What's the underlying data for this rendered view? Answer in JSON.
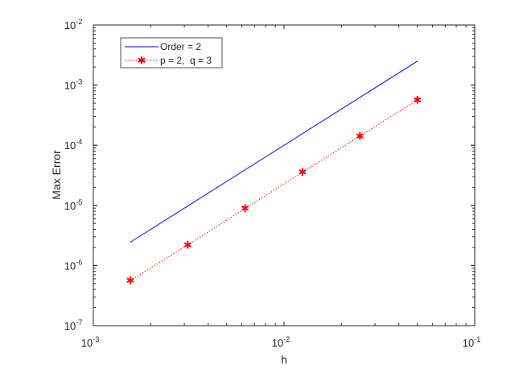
{
  "chart_data": {
    "type": "line",
    "title": "",
    "xlabel": "h",
    "ylabel": "Max Error",
    "xscale": "log",
    "yscale": "log",
    "xlim": [
      0.001,
      0.1
    ],
    "ylim": [
      1e-07,
      0.01
    ],
    "xticks": [
      {
        "base": "10",
        "exp": "-3",
        "value": 0.001
      },
      {
        "base": "10",
        "exp": "-2",
        "value": 0.01
      },
      {
        "base": "10",
        "exp": "-1",
        "value": 0.1
      }
    ],
    "yticks": [
      {
        "base": "10",
        "exp": "-7",
        "value": 1e-07
      },
      {
        "base": "10",
        "exp": "-6",
        "value": 1e-06
      },
      {
        "base": "10",
        "exp": "-5",
        "value": 1e-05
      },
      {
        "base": "10",
        "exp": "-4",
        "value": 0.0001
      },
      {
        "base": "10",
        "exp": "-3",
        "value": 0.001
      },
      {
        "base": "10",
        "exp": "-2",
        "value": 0.01
      }
    ],
    "legend_position": "top-left",
    "series": [
      {
        "name": "Order = 2",
        "color": "#0000ff",
        "style": "solid",
        "marker": "none",
        "x": [
          0.0015625,
          0.05
        ],
        "y": [
          2.44e-06,
          0.0025
        ]
      },
      {
        "name": "p = 2,  q = 3",
        "color": "#ff0000",
        "style": "dotted",
        "marker": "asterisk",
        "x": [
          0.0015625,
          0.003125,
          0.00625,
          0.0125,
          0.025,
          0.05
        ],
        "y": [
          5.6e-07,
          2.2e-06,
          8.9e-06,
          3.56e-05,
          0.000142,
          0.00057
        ]
      }
    ]
  }
}
